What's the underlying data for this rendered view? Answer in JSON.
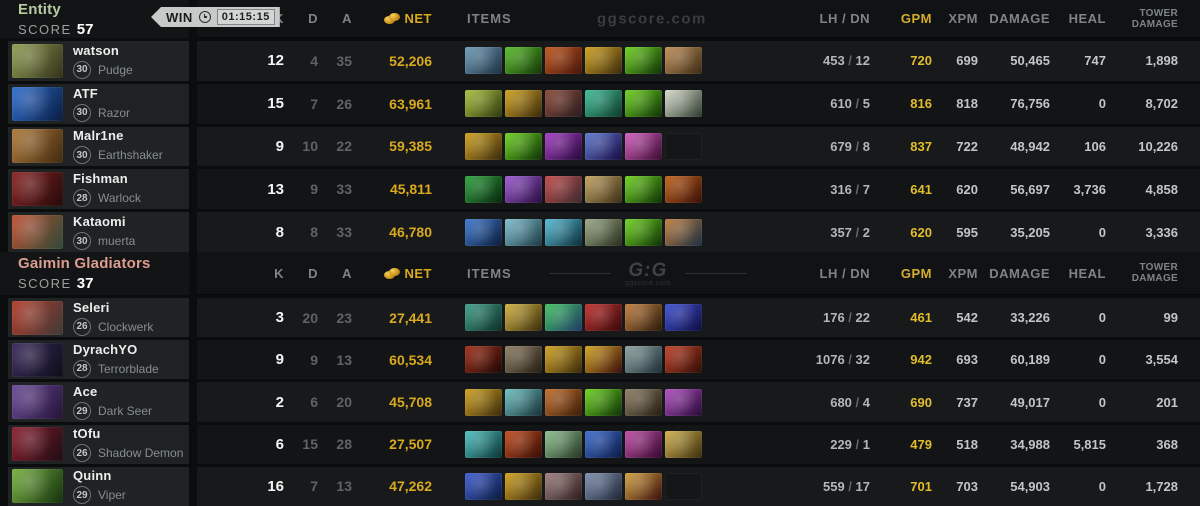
{
  "match": {
    "win_label": "WIN",
    "time": "01:15:15"
  },
  "labels": {
    "score": "SCORE",
    "sep": " / "
  },
  "watermark": {
    "site": "ggscore.com",
    "logo": "G:G"
  },
  "columns": {
    "k": "K",
    "d": "D",
    "a": "A",
    "net": "NET",
    "items": "ITEMS",
    "lh_dn": "LH / DN",
    "gpm": "GPM",
    "xpm": "XPM",
    "damage": "DAMAGE",
    "heal": "HEAL",
    "tower_line1": "TOWER",
    "tower_line2": "DAMAGE"
  },
  "colors": {
    "net": "#d9a91e",
    "gpm": "#e2bd2a",
    "entity": "#b7cba3",
    "gaimin": "#dd9e90"
  },
  "teams": [
    {
      "name": "Entity",
      "score": "57",
      "color": "#b7cba3",
      "players": [
        {
          "name": "watson",
          "level": "30",
          "hero": "Pudge",
          "kills": "12",
          "deaths": "4",
          "assists": "35",
          "net": "52,206",
          "lh": "453",
          "dn": "12",
          "gpm": "720",
          "xpm": "699",
          "damage": "50,465",
          "heal": "747",
          "tower": "1,898",
          "portrait": [
            "#8f9e52",
            "#33301a"
          ],
          "items": [
            [
              "#6f9cb8",
              "#1d2f40"
            ],
            [
              "#5abf2a",
              "#143509"
            ],
            [
              "#c2571f",
              "#46150a"
            ],
            [
              "#d2a31f",
              "#3a2a0e"
            ],
            [
              "#6ed41f",
              "#0f3008"
            ],
            [
              "#c19058",
              "#3a2a16"
            ]
          ]
        },
        {
          "name": "ATF",
          "level": "30",
          "hero": "Razor",
          "kills": "15",
          "deaths": "7",
          "assists": "26",
          "net": "63,961",
          "lh": "610",
          "dn": "5",
          "gpm": "816",
          "xpm": "818",
          "damage": "76,756",
          "heal": "0",
          "tower": "8,702",
          "portrait": [
            "#2f6fd0",
            "#091c40"
          ],
          "items": [
            [
              "#a8c23d",
              "#2e3a0e"
            ],
            [
              "#d2a31f",
              "#3a2a0e"
            ],
            [
              "#8c4a3a",
              "#2a1c20"
            ],
            [
              "#3fbf9a",
              "#0f3a28"
            ],
            [
              "#6ed41f",
              "#0f3008"
            ],
            [
              "#d8dccc",
              "#2d3a2e"
            ]
          ]
        },
        {
          "name": "Malr1ne",
          "level": "30",
          "hero": "Earthshaker",
          "kills": "9",
          "deaths": "10",
          "assists": "22",
          "net": "59,385",
          "lh": "679",
          "dn": "8",
          "gpm": "837",
          "xpm": "722",
          "damage": "48,942",
          "heal": "106",
          "tower": "10,226",
          "portrait": [
            "#b07a3a",
            "#3f2a10"
          ],
          "items": [
            [
              "#d2a31f",
              "#3a2a0e"
            ],
            [
              "#6ed41f",
              "#0f3008"
            ],
            [
              "#a43fc2",
              "#26083a"
            ],
            [
              "#5f7ad0",
              "#180a42"
            ],
            [
              "#d45fc0",
              "#3a0a30"
            ],
            null
          ]
        },
        {
          "name": "Fishman",
          "level": "28",
          "hero": "Warlock",
          "kills": "13",
          "deaths": "9",
          "assists": "33",
          "net": "45,811",
          "lh": "316",
          "dn": "7",
          "gpm": "641",
          "xpm": "620",
          "damage": "56,697",
          "heal": "3,736",
          "tower": "4,858",
          "portrait": [
            "#8a2424",
            "#250a0a"
          ],
          "items": [
            [
              "#2fa33f",
              "#08260e"
            ],
            [
              "#9c5ad2",
              "#280e3e"
            ],
            [
              "#c24848",
              "#3a2c30"
            ],
            [
              "#c2a360",
              "#3a2e18"
            ],
            [
              "#6ed41f",
              "#0f3008"
            ],
            [
              "#c2641f",
              "#380f06"
            ]
          ]
        },
        {
          "name": "Kataomi",
          "level": "30",
          "hero": "muerta",
          "kills": "8",
          "deaths": "8",
          "assists": "33",
          "net": "46,780",
          "lh": "357",
          "dn": "2",
          "gpm": "620",
          "xpm": "595",
          "damage": "35,205",
          "heal": "0",
          "tower": "3,336",
          "portrait": [
            "#bf4f30",
            "#2e4a38"
          ],
          "items": [
            [
              "#3f7ad0",
              "#0c1c3a"
            ],
            [
              "#7fbfd0",
              "#1c3a42"
            ],
            [
              "#56bcd4",
              "#0c2e38"
            ],
            [
              "#9aa886",
              "#262e1c"
            ],
            [
              "#6ed41f",
              "#0f3008"
            ],
            [
              "#bf7f3f",
              "#1c2e40"
            ]
          ]
        }
      ]
    },
    {
      "name": "Gaimin Gladiators",
      "score": "37",
      "color": "#dd9e90",
      "players": [
        {
          "name": "Seleri",
          "level": "26",
          "hero": "Clockwerk",
          "kills": "3",
          "deaths": "20",
          "assists": "23",
          "net": "27,441",
          "lh": "176",
          "dn": "22",
          "gpm": "461",
          "xpm": "542",
          "damage": "33,226",
          "heal": "0",
          "tower": "99",
          "portrait": [
            "#b23a28",
            "#3f3a38"
          ],
          "items": [
            [
              "#3f9f8a",
              "#0e2e26"
            ],
            [
              "#d2b23f",
              "#3a2c0e"
            ],
            [
              "#3fc25f",
              "#203a66"
            ],
            [
              "#c23030",
              "#360a0a"
            ],
            [
              "#c2803f",
              "#2a1a0c"
            ],
            [
              "#3f50d2",
              "#0e0e42"
            ]
          ]
        },
        {
          "name": "DyrachYO",
          "level": "28",
          "hero": "Terrorblade",
          "kills": "9",
          "deaths": "9",
          "assists": "13",
          "net": "60,534",
          "lh": "1076",
          "dn": "32",
          "gpm": "942",
          "xpm": "693",
          "damage": "60,189",
          "heal": "0",
          "tower": "3,554",
          "portrait": [
            "#3a2a5c",
            "#0e0e1a"
          ],
          "items": [
            [
              "#a23018",
              "#1e0806"
            ],
            [
              "#8f8066",
              "#241c12"
            ],
            [
              "#d2a31f",
              "#3a2a0e"
            ],
            [
              "#d2a31f",
              "#3a0e0e"
            ],
            [
              "#8fa3a3",
              "#1c2e36"
            ],
            [
              "#c24026",
              "#2e0e06"
            ]
          ]
        },
        {
          "name": "Ace",
          "level": "29",
          "hero": "Dark Seer",
          "kills": "2",
          "deaths": "6",
          "assists": "20",
          "net": "45,708",
          "lh": "680",
          "dn": "4",
          "gpm": "690",
          "xpm": "737",
          "damage": "49,017",
          "heal": "0",
          "tower": "201",
          "portrait": [
            "#6a4a98",
            "#241436"
          ],
          "items": [
            [
              "#d2a31f",
              "#3a2a0e"
            ],
            [
              "#6fc2c2",
              "#163036"
            ],
            [
              "#c2702e",
              "#3a1c08"
            ],
            [
              "#6ed41f",
              "#0f3008"
            ],
            [
              "#8f8066",
              "#241c12"
            ],
            [
              "#b24fc2",
              "#260a36"
            ]
          ]
        },
        {
          "name": "tOfu",
          "level": "26",
          "hero": "Shadow Demon",
          "kills": "6",
          "deaths": "15",
          "assists": "28",
          "net": "27,507",
          "lh": "229",
          "dn": "1",
          "gpm": "479",
          "xpm": "518",
          "damage": "34,988",
          "heal": "5,815",
          "tower": "368",
          "portrait": [
            "#8a1f2e",
            "#1e0c14"
          ],
          "items": [
            [
              "#4fc2c2",
              "#0c3434"
            ],
            [
              "#c24f1f",
              "#340c06"
            ],
            [
              "#8fc28f",
              "#243424"
            ],
            [
              "#3f6fd2",
              "#0c1a44"
            ],
            [
              "#c24fa8",
              "#34082c"
            ],
            [
              "#d2b24f",
              "#3a2e0e"
            ]
          ]
        },
        {
          "name": "Quinn",
          "level": "29",
          "hero": "Viper",
          "kills": "16",
          "deaths": "7",
          "assists": "13",
          "net": "47,262",
          "lh": "559",
          "dn": "17",
          "gpm": "701",
          "xpm": "703",
          "damage": "54,903",
          "heal": "0",
          "tower": "1,728",
          "portrait": [
            "#76b03f",
            "#14300e"
          ],
          "items": [
            [
              "#3f5fd2",
              "#0c1a3e"
            ],
            [
              "#d2a31f",
              "#3a2a0e"
            ],
            [
              "#9f8080",
              "#2c1c1c"
            ],
            [
              "#8090b0",
              "#1e2636"
            ],
            [
              "#d2a33f",
              "#3a0e0e"
            ],
            null
          ]
        }
      ]
    }
  ]
}
